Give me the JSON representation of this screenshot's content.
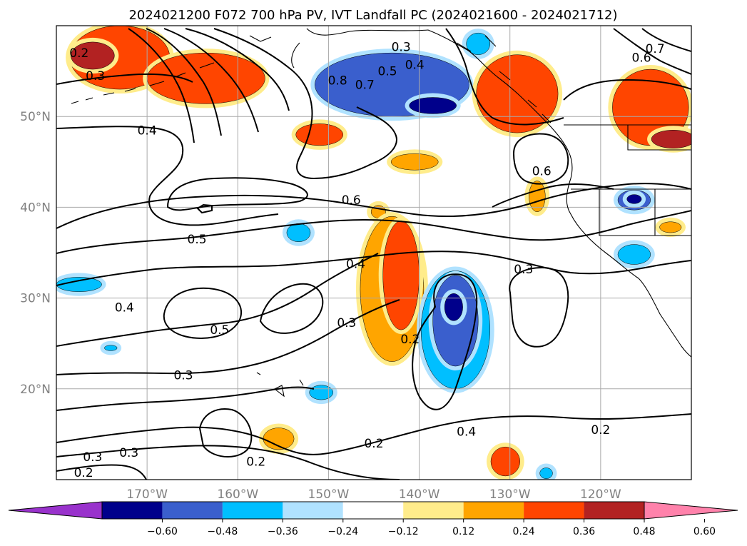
{
  "chart_data": {
    "type": "contour-map",
    "title": "2024021200 F072 700 hPa PV, IVT Landfall PC (2024021600 - 2024021712)",
    "x_ticks": [
      "170°W",
      "160°W",
      "150°W",
      "140°W",
      "130°W",
      "120°W"
    ],
    "x_tick_values": [
      -170,
      -160,
      -150,
      -140,
      -130,
      -120
    ],
    "y_ticks": [
      "50°N",
      "40°N",
      "30°N",
      "20°N"
    ],
    "y_tick_values": [
      50,
      40,
      30,
      20
    ],
    "xlim": [
      -180,
      -110
    ],
    "ylim": [
      10,
      60
    ],
    "grid": true,
    "colorbar": {
      "orientation": "horizontal",
      "extend": "both",
      "ticks": [
        "−0.60",
        "−0.48",
        "−0.36",
        "−0.24",
        "−0.12",
        "0.12",
        "0.24",
        "0.36",
        "0.48",
        "0.60"
      ],
      "colors": [
        "#9932cc",
        "#00008b",
        "#3a5fcd",
        "#00bfff",
        "#b0e2ff",
        "#ffffff",
        "#ffec8b",
        "#ffa500",
        "#ff4500",
        "#b22222",
        "#ff82ab"
      ]
    },
    "contour_labels": [
      {
        "text": "0.2",
        "lon": -177.5,
        "lat": 57
      },
      {
        "text": "0.3",
        "lon": -175.7,
        "lat": 54.5
      },
      {
        "text": "0.8",
        "lon": -149,
        "lat": 54
      },
      {
        "text": "0.7",
        "lon": -146,
        "lat": 53.5
      },
      {
        "text": "0.5",
        "lon": -143.5,
        "lat": 55
      },
      {
        "text": "0.4",
        "lon": -140.5,
        "lat": 55.7
      },
      {
        "text": "0.3",
        "lon": -142,
        "lat": 57.7
      },
      {
        "text": "0.4",
        "lon": -170,
        "lat": 48.5
      },
      {
        "text": "0.7",
        "lon": -114,
        "lat": 57.5
      },
      {
        "text": "0.6",
        "lon": -115.5,
        "lat": 56.5
      },
      {
        "text": "0.6",
        "lon": -126.5,
        "lat": 44
      },
      {
        "text": "0.6",
        "lon": -147.5,
        "lat": 40.8
      },
      {
        "text": "0.5",
        "lon": -164.5,
        "lat": 36.5
      },
      {
        "text": "0.4",
        "lon": -147,
        "lat": 33.8
      },
      {
        "text": "0.3",
        "lon": -128.5,
        "lat": 33.2
      },
      {
        "text": "0.4",
        "lon": -172.5,
        "lat": 29
      },
      {
        "text": "0.5",
        "lon": -162,
        "lat": 26.5
      },
      {
        "text": "0.3",
        "lon": -148,
        "lat": 27.3
      },
      {
        "text": "0.2",
        "lon": -141,
        "lat": 25.5
      },
      {
        "text": "0.3",
        "lon": -166,
        "lat": 21.5
      },
      {
        "text": "0.3",
        "lon": -176,
        "lat": 12.5
      },
      {
        "text": "0.3",
        "lon": -172,
        "lat": 13
      },
      {
        "text": "0.2",
        "lon": -177,
        "lat": 10.8
      },
      {
        "text": "0.2",
        "lon": -158,
        "lat": 12
      },
      {
        "text": "0.2",
        "lon": -145,
        "lat": 14
      },
      {
        "text": "0.4",
        "lon": -134.8,
        "lat": 15.3
      },
      {
        "text": "0.2",
        "lon": -120,
        "lat": 15.5
      }
    ],
    "shaded_regions": [
      {
        "lon": -173,
        "lat": 56.5,
        "rx": 5.5,
        "ry": 3.5,
        "value": 0.36
      },
      {
        "lon": -176,
        "lat": 56.7,
        "rx": 2.4,
        "ry": 1.5,
        "value": 0.48
      },
      {
        "lon": -163.5,
        "lat": 54.2,
        "rx": 6.5,
        "ry": 2.8,
        "value": 0.36
      },
      {
        "lon": -151,
        "lat": 48,
        "rx": 2.6,
        "ry": 1.2,
        "value": 0.36
      },
      {
        "lon": -140.5,
        "lat": 45,
        "rx": 2.6,
        "ry": 0.9,
        "value": 0.24
      },
      {
        "lon": -144.5,
        "lat": 39.5,
        "rx": 0.8,
        "ry": 0.7,
        "value": 0.24
      },
      {
        "lon": -143,
        "lat": 53.5,
        "rx": 8.5,
        "ry": 3.5,
        "value": -0.36
      },
      {
        "lon": -138.5,
        "lat": 51.2,
        "rx": 2.6,
        "ry": 0.9,
        "value": -0.48
      },
      {
        "lon": -129.2,
        "lat": 52.5,
        "rx": 4.5,
        "ry": 4.3,
        "value": 0.36
      },
      {
        "lon": -114.5,
        "lat": 51,
        "rx": 4.2,
        "ry": 4.2,
        "value": 0.36
      },
      {
        "lon": -112,
        "lat": 47.5,
        "rx": 2.4,
        "ry": 1,
        "value": 0.48
      },
      {
        "lon": -127,
        "lat": 41.2,
        "rx": 0.9,
        "ry": 1.7,
        "value": 0.24
      },
      {
        "lon": -116.3,
        "lat": 40.8,
        "rx": 1.8,
        "ry": 1.1,
        "value": -0.36
      },
      {
        "lon": -116.3,
        "lat": 40.9,
        "rx": 0.8,
        "ry": 0.5,
        "value": -0.48
      },
      {
        "lon": -112.3,
        "lat": 37.8,
        "rx": 1.2,
        "ry": 0.6,
        "value": 0.24
      },
      {
        "lon": -116.3,
        "lat": 34.8,
        "rx": 1.8,
        "ry": 1.1,
        "value": -0.24
      },
      {
        "lon": -153.3,
        "lat": 37.2,
        "rx": 1.3,
        "ry": 1,
        "value": -0.24
      },
      {
        "lon": -177.5,
        "lat": 31.5,
        "rx": 2.5,
        "ry": 0.8,
        "value": -0.24
      },
      {
        "lon": -143,
        "lat": 31,
        "rx": 3.5,
        "ry": 8,
        "value": 0.24
      },
      {
        "lon": -142,
        "lat": 32.5,
        "rx": 2,
        "ry": 6,
        "value": 0.36
      },
      {
        "lon": -136,
        "lat": 26.5,
        "rx": 3.8,
        "ry": 6.5,
        "value": -0.24
      },
      {
        "lon": -136,
        "lat": 27.5,
        "rx": 2.5,
        "ry": 5,
        "value": -0.36
      },
      {
        "lon": -136.2,
        "lat": 29,
        "rx": 1,
        "ry": 1.5,
        "value": -0.48
      },
      {
        "lon": -150.8,
        "lat": 19.6,
        "rx": 1.3,
        "ry": 0.8,
        "value": -0.24
      },
      {
        "lon": -155.5,
        "lat": 14.5,
        "rx": 1.7,
        "ry": 1.2,
        "value": 0.24
      },
      {
        "lon": -130.5,
        "lat": 12,
        "rx": 1.6,
        "ry": 1.6,
        "value": 0.36
      },
      {
        "lon": -174,
        "lat": 24.5,
        "rx": 0.7,
        "ry": 0.3,
        "value": -0.24
      },
      {
        "lon": -133.5,
        "lat": 58,
        "rx": 1.3,
        "ry": 1.2,
        "value": -0.24
      },
      {
        "lon": -126,
        "lat": 10.7,
        "rx": 0.7,
        "ry": 0.6,
        "value": -0.24
      }
    ]
  }
}
